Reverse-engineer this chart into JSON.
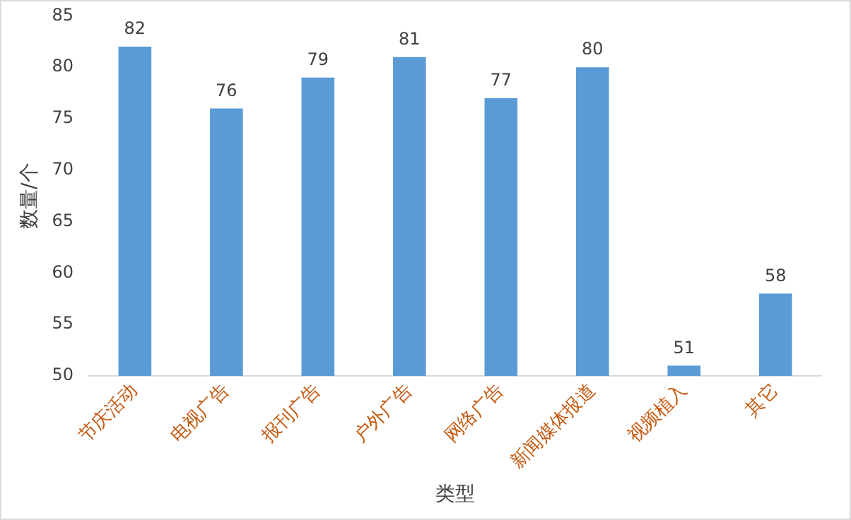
{
  "chart_data": {
    "type": "bar",
    "xlabel": "类型",
    "ylabel": "数量/个",
    "categories": [
      "节庆活动",
      "电视广告",
      "报刊广告",
      "户外广告",
      "网络广告",
      "新闻媒体报道",
      "视频植入",
      "其它"
    ],
    "values": [
      82,
      76,
      79,
      81,
      77,
      80,
      51,
      58
    ],
    "color": "#5b9bd5",
    "ylim": [
      50,
      85
    ],
    "yticks": [
      50,
      55,
      60,
      65,
      70,
      75,
      80,
      85
    ],
    "grid": false,
    "legend": false,
    "data_labels": true
  }
}
